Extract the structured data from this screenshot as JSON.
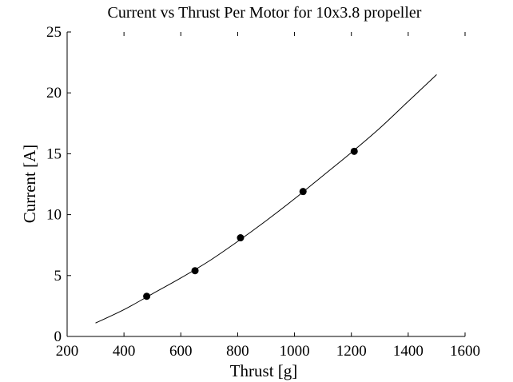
{
  "chart_data": {
    "type": "scatter",
    "title": "Current vs Thrust Per Motor for 10x3.8 propeller",
    "xlabel": "Thrust [g]",
    "ylabel": "Current [A]",
    "xlim": [
      200,
      1600
    ],
    "ylim": [
      0,
      25
    ],
    "xticks": [
      200,
      400,
      600,
      800,
      1000,
      1200,
      1400,
      1600
    ],
    "yticks": [
      0,
      5,
      10,
      15,
      20,
      25
    ],
    "grid": false,
    "legend": "none",
    "series": [
      {
        "kind": "scatter",
        "marker": "filled-circle",
        "color": "#000000",
        "points": [
          {
            "x": 480,
            "y": 3.3
          },
          {
            "x": 650,
            "y": 5.4
          },
          {
            "x": 810,
            "y": 8.1
          },
          {
            "x": 1030,
            "y": 11.9
          },
          {
            "x": 1210,
            "y": 15.2
          }
        ]
      },
      {
        "kind": "line",
        "color": "#000000",
        "points": [
          {
            "x": 300,
            "y": 1.1
          },
          {
            "x": 400,
            "y": 2.2
          },
          {
            "x": 500,
            "y": 3.5
          },
          {
            "x": 600,
            "y": 4.8
          },
          {
            "x": 700,
            "y": 6.2
          },
          {
            "x": 800,
            "y": 7.8
          },
          {
            "x": 900,
            "y": 9.5
          },
          {
            "x": 1000,
            "y": 11.3
          },
          {
            "x": 1100,
            "y": 13.2
          },
          {
            "x": 1200,
            "y": 15.1
          },
          {
            "x": 1300,
            "y": 17.1
          },
          {
            "x": 1400,
            "y": 19.3
          },
          {
            "x": 1500,
            "y": 21.5
          }
        ]
      }
    ]
  }
}
